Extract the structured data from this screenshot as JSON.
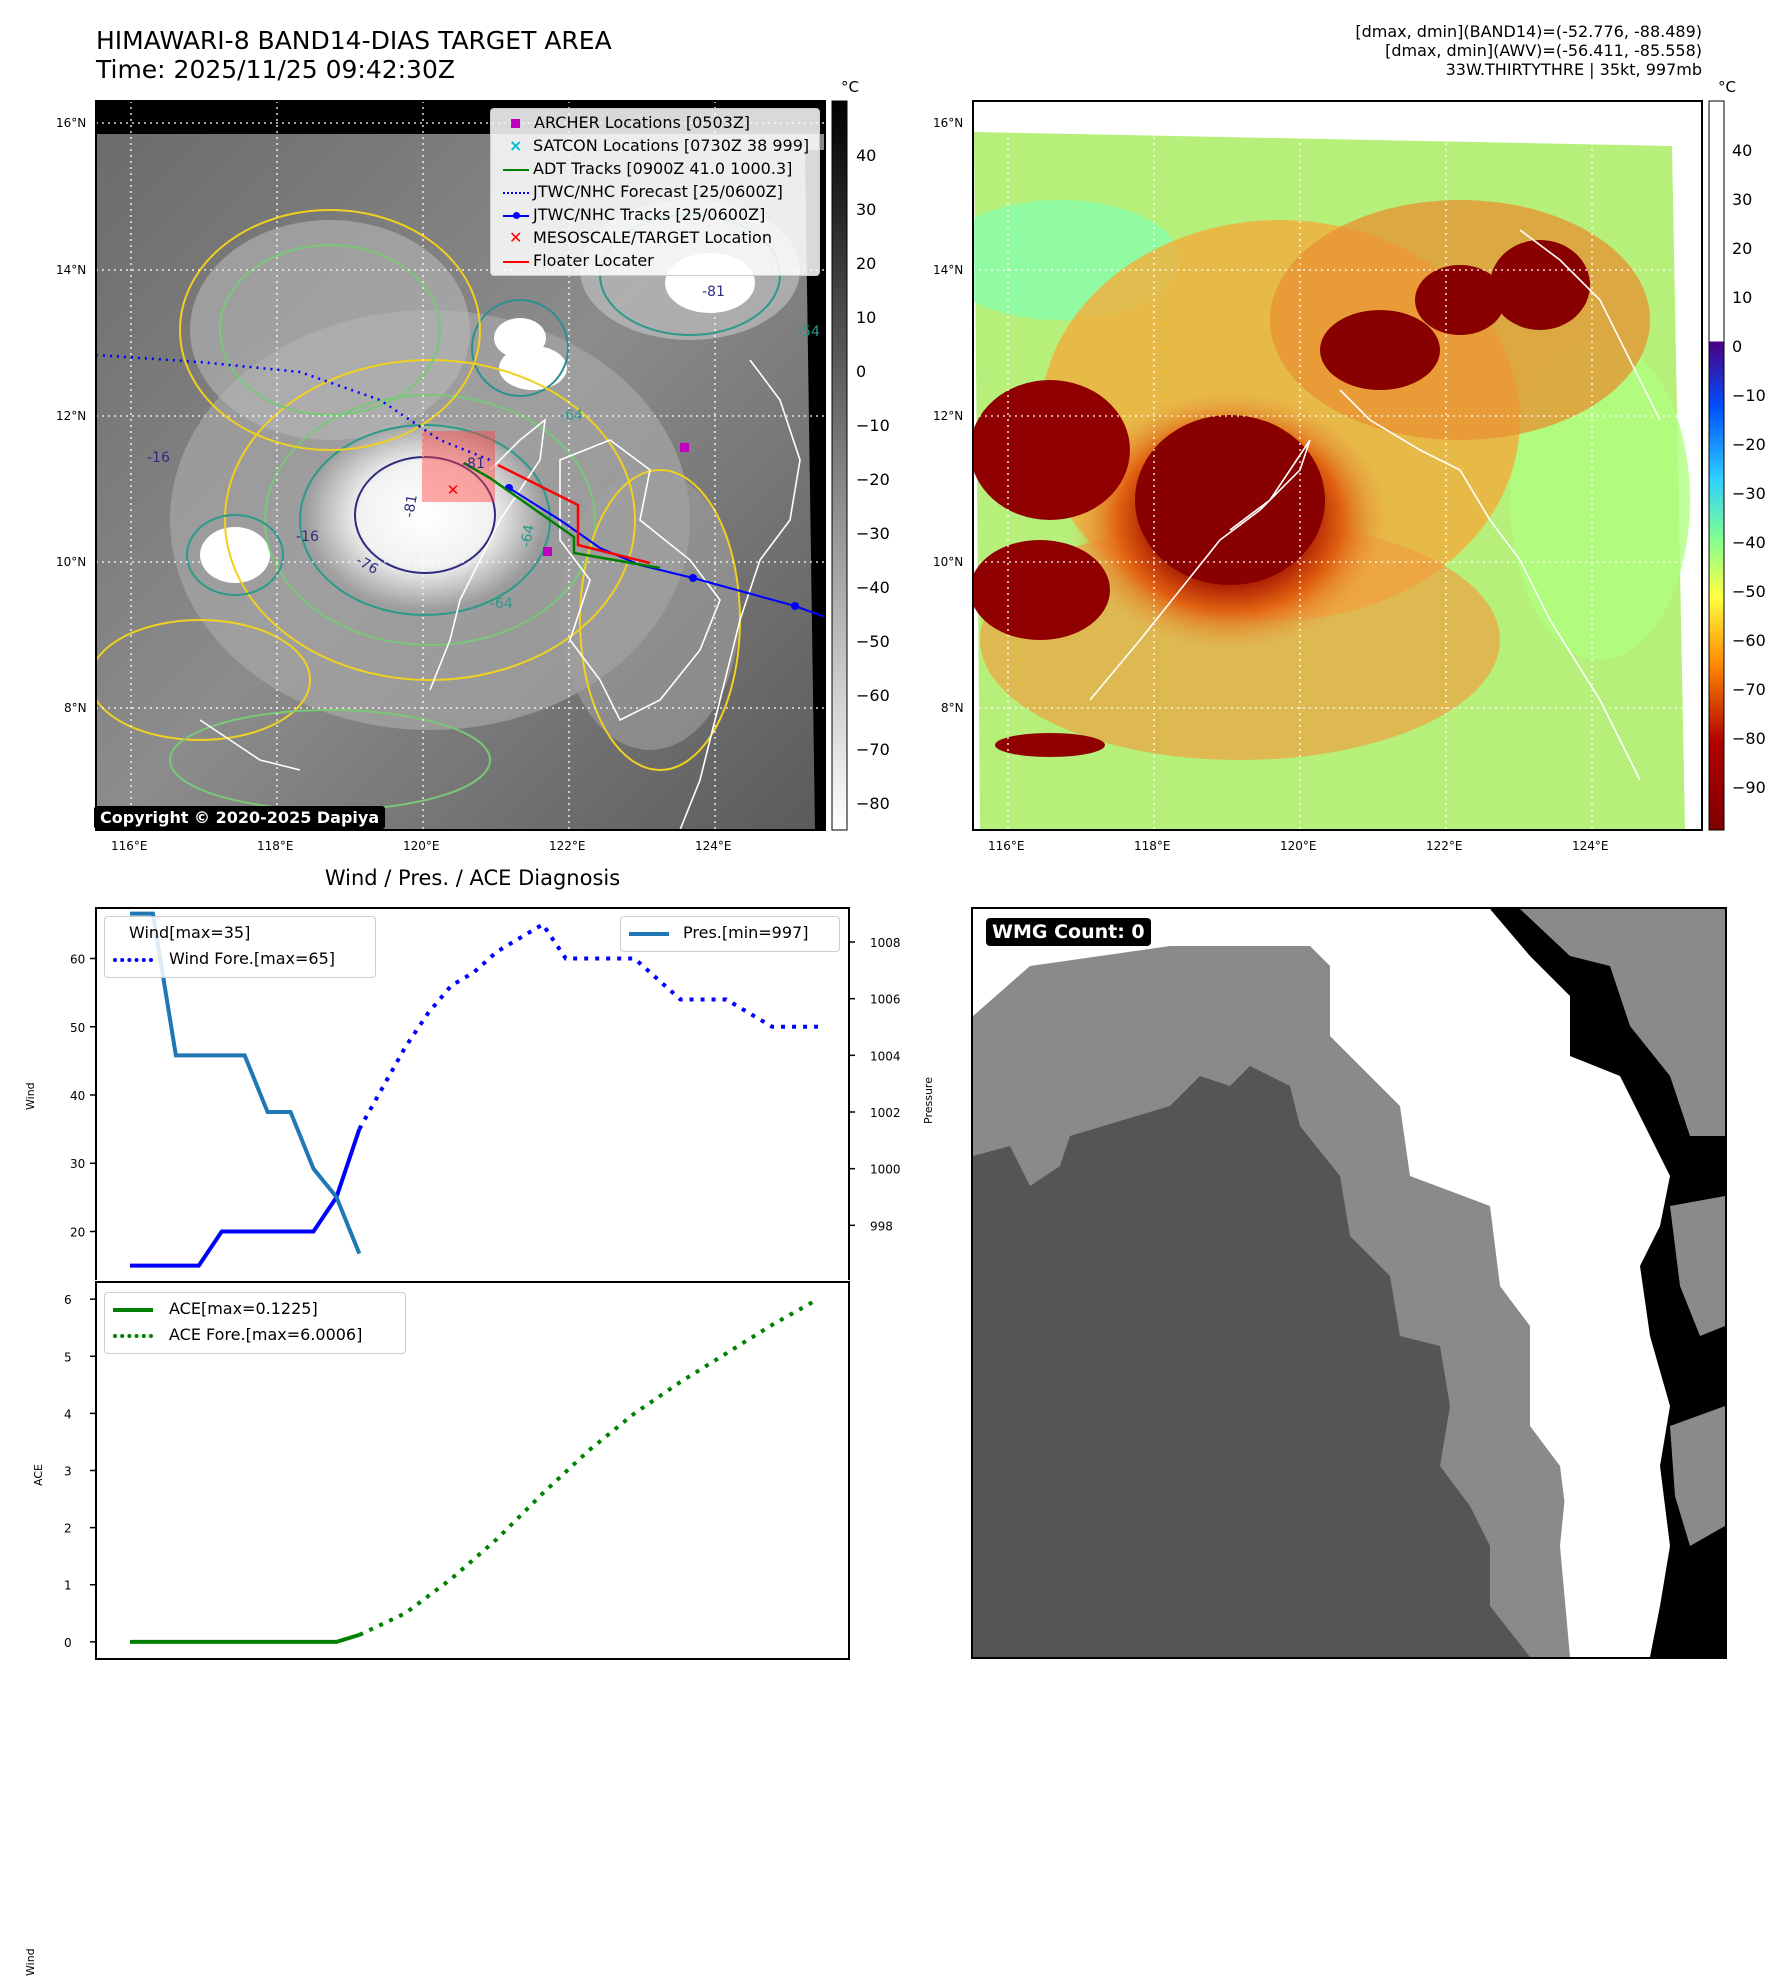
{
  "header": {
    "title_line1": "HIMAWARI-8 BAND14-DIAS TARGET AREA",
    "title_line2": "Time: 2025/11/25 09:42:30Z",
    "info_line1": "[dmax, dmin](BAND14)=(-52.776, -88.489)",
    "info_line2": "[dmax, dmin](AWV)=(-56.411, -85.558)",
    "info_line3": "33W.THIRTYTHRE | 35kt, 997mb"
  },
  "ir_panel": {
    "unit": "°C",
    "lat_labels": [
      "16°N",
      "14°N",
      "12°N",
      "10°N",
      "8°N"
    ],
    "lon_labels": [
      "116°E",
      "118°E",
      "120°E",
      "122°E",
      "124°E"
    ],
    "colorbar_ticks": [
      "40",
      "30",
      "20",
      "10",
      "0",
      "−10",
      "−20",
      "−30",
      "−40",
      "−50",
      "−60",
      "−70",
      "−80"
    ],
    "copyright": "Copyright © 2020-2025 Dapiya",
    "contour_labels": [
      "-81",
      "-64",
      "-64",
      "-76",
      "-16",
      "-64",
      "-81",
      "-54",
      "-81",
      "-16"
    ],
    "legend": [
      {
        "label": "ARCHER Locations [0503Z]",
        "color": "#c000c0"
      },
      {
        "label": "SATCON Locations [0730Z 38 999]",
        "color": "#00bcd4"
      },
      {
        "label": "ADT Tracks [0900Z 41.0 1000.3]",
        "color": "#008000"
      },
      {
        "label": "JTWC/NHC Forecast [25/0600Z]",
        "color": "#0000ff"
      },
      {
        "label": "JTWC/NHC Tracks [25/0600Z]",
        "color": "#0000ff"
      },
      {
        "label": "MESOSCALE/TARGET Location",
        "color": "#ff0000"
      },
      {
        "label": "Floater Locater",
        "color": "#ff0000"
      }
    ]
  },
  "awv_panel": {
    "unit": "°C",
    "lat_labels": [
      "16°N",
      "14°N",
      "12°N",
      "10°N",
      "8°N"
    ],
    "lon_labels": [
      "116°E",
      "118°E",
      "120°E",
      "122°E",
      "124°E"
    ],
    "colorbar_ticks": [
      "40",
      "30",
      "20",
      "10",
      "0",
      "−10",
      "−20",
      "−30",
      "−40",
      "−50",
      "−60",
      "−70",
      "−80",
      "−90"
    ]
  },
  "diag_title": "Wind / Pres. / ACE Diagnosis",
  "wmg_label": "WMG Count: 0",
  "chart_data": [
    {
      "type": "line",
      "title": "Wind / Pres. / ACE Diagnosis",
      "ylabel": "Wind",
      "y2label": "Pressure",
      "ylim": [
        12.6,
        67.4
      ],
      "y2lim": [
        996.0,
        1009.2
      ],
      "yticks": [
        20,
        30,
        40,
        50,
        60
      ],
      "y2ticks": [
        998,
        1000,
        1002,
        1004,
        1006,
        1008
      ],
      "series": [
        {
          "name": "Wind[max=35]",
          "color": "#0000ff",
          "style": "solid",
          "axis": "left",
          "x": [
            0,
            2,
            3,
            4,
            5,
            6,
            7,
            8,
            9,
            10
          ],
          "values": [
            15,
            15,
            15,
            20,
            20,
            20,
            20,
            20,
            25,
            35
          ]
        },
        {
          "name": "Wind Fore.[max=65]",
          "color": "#0000ff",
          "style": "dotted",
          "axis": "left",
          "x": [
            10,
            11,
            12,
            13,
            14,
            15,
            16,
            17,
            18,
            19,
            20,
            21,
            22,
            23,
            24,
            25,
            26,
            27,
            28,
            29,
            30
          ],
          "values": [
            35,
            41,
            47,
            52,
            56,
            58,
            61,
            63,
            65,
            60,
            60,
            60,
            60,
            57,
            54,
            54,
            54,
            52,
            50,
            50,
            50
          ]
        },
        {
          "name": "Pres.[min=997]",
          "color": "#1f77b4",
          "style": "solid",
          "axis": "right",
          "x": [
            0,
            1,
            2,
            3,
            4,
            5,
            6,
            7,
            8,
            9,
            10
          ],
          "values": [
            1009,
            1009,
            1004,
            1004,
            1004,
            1004,
            1002,
            1002,
            1000,
            999,
            997
          ]
        }
      ]
    },
    {
      "type": "line",
      "ylabel": "ACE",
      "ylim": [
        -0.3,
        6.3
      ],
      "yticks": [
        0,
        1,
        2,
        3,
        4,
        5,
        6
      ],
      "series": [
        {
          "name": "ACE[max=0.1225]",
          "color": "#008000",
          "style": "solid",
          "x": [
            0,
            2,
            4,
            6,
            8,
            9,
            10
          ],
          "values": [
            0,
            0,
            0,
            0,
            0,
            0,
            0.1225
          ]
        },
        {
          "name": "ACE Fore.[max=6.0006]",
          "color": "#008000",
          "style": "dotted",
          "x": [
            10,
            12,
            14,
            16,
            18,
            20,
            22,
            24,
            26,
            28,
            30
          ],
          "values": [
            0.1225,
            0.5,
            1.1,
            1.8,
            2.6,
            3.35,
            4.0,
            4.55,
            5.05,
            5.55,
            6.0006
          ]
        }
      ]
    }
  ]
}
